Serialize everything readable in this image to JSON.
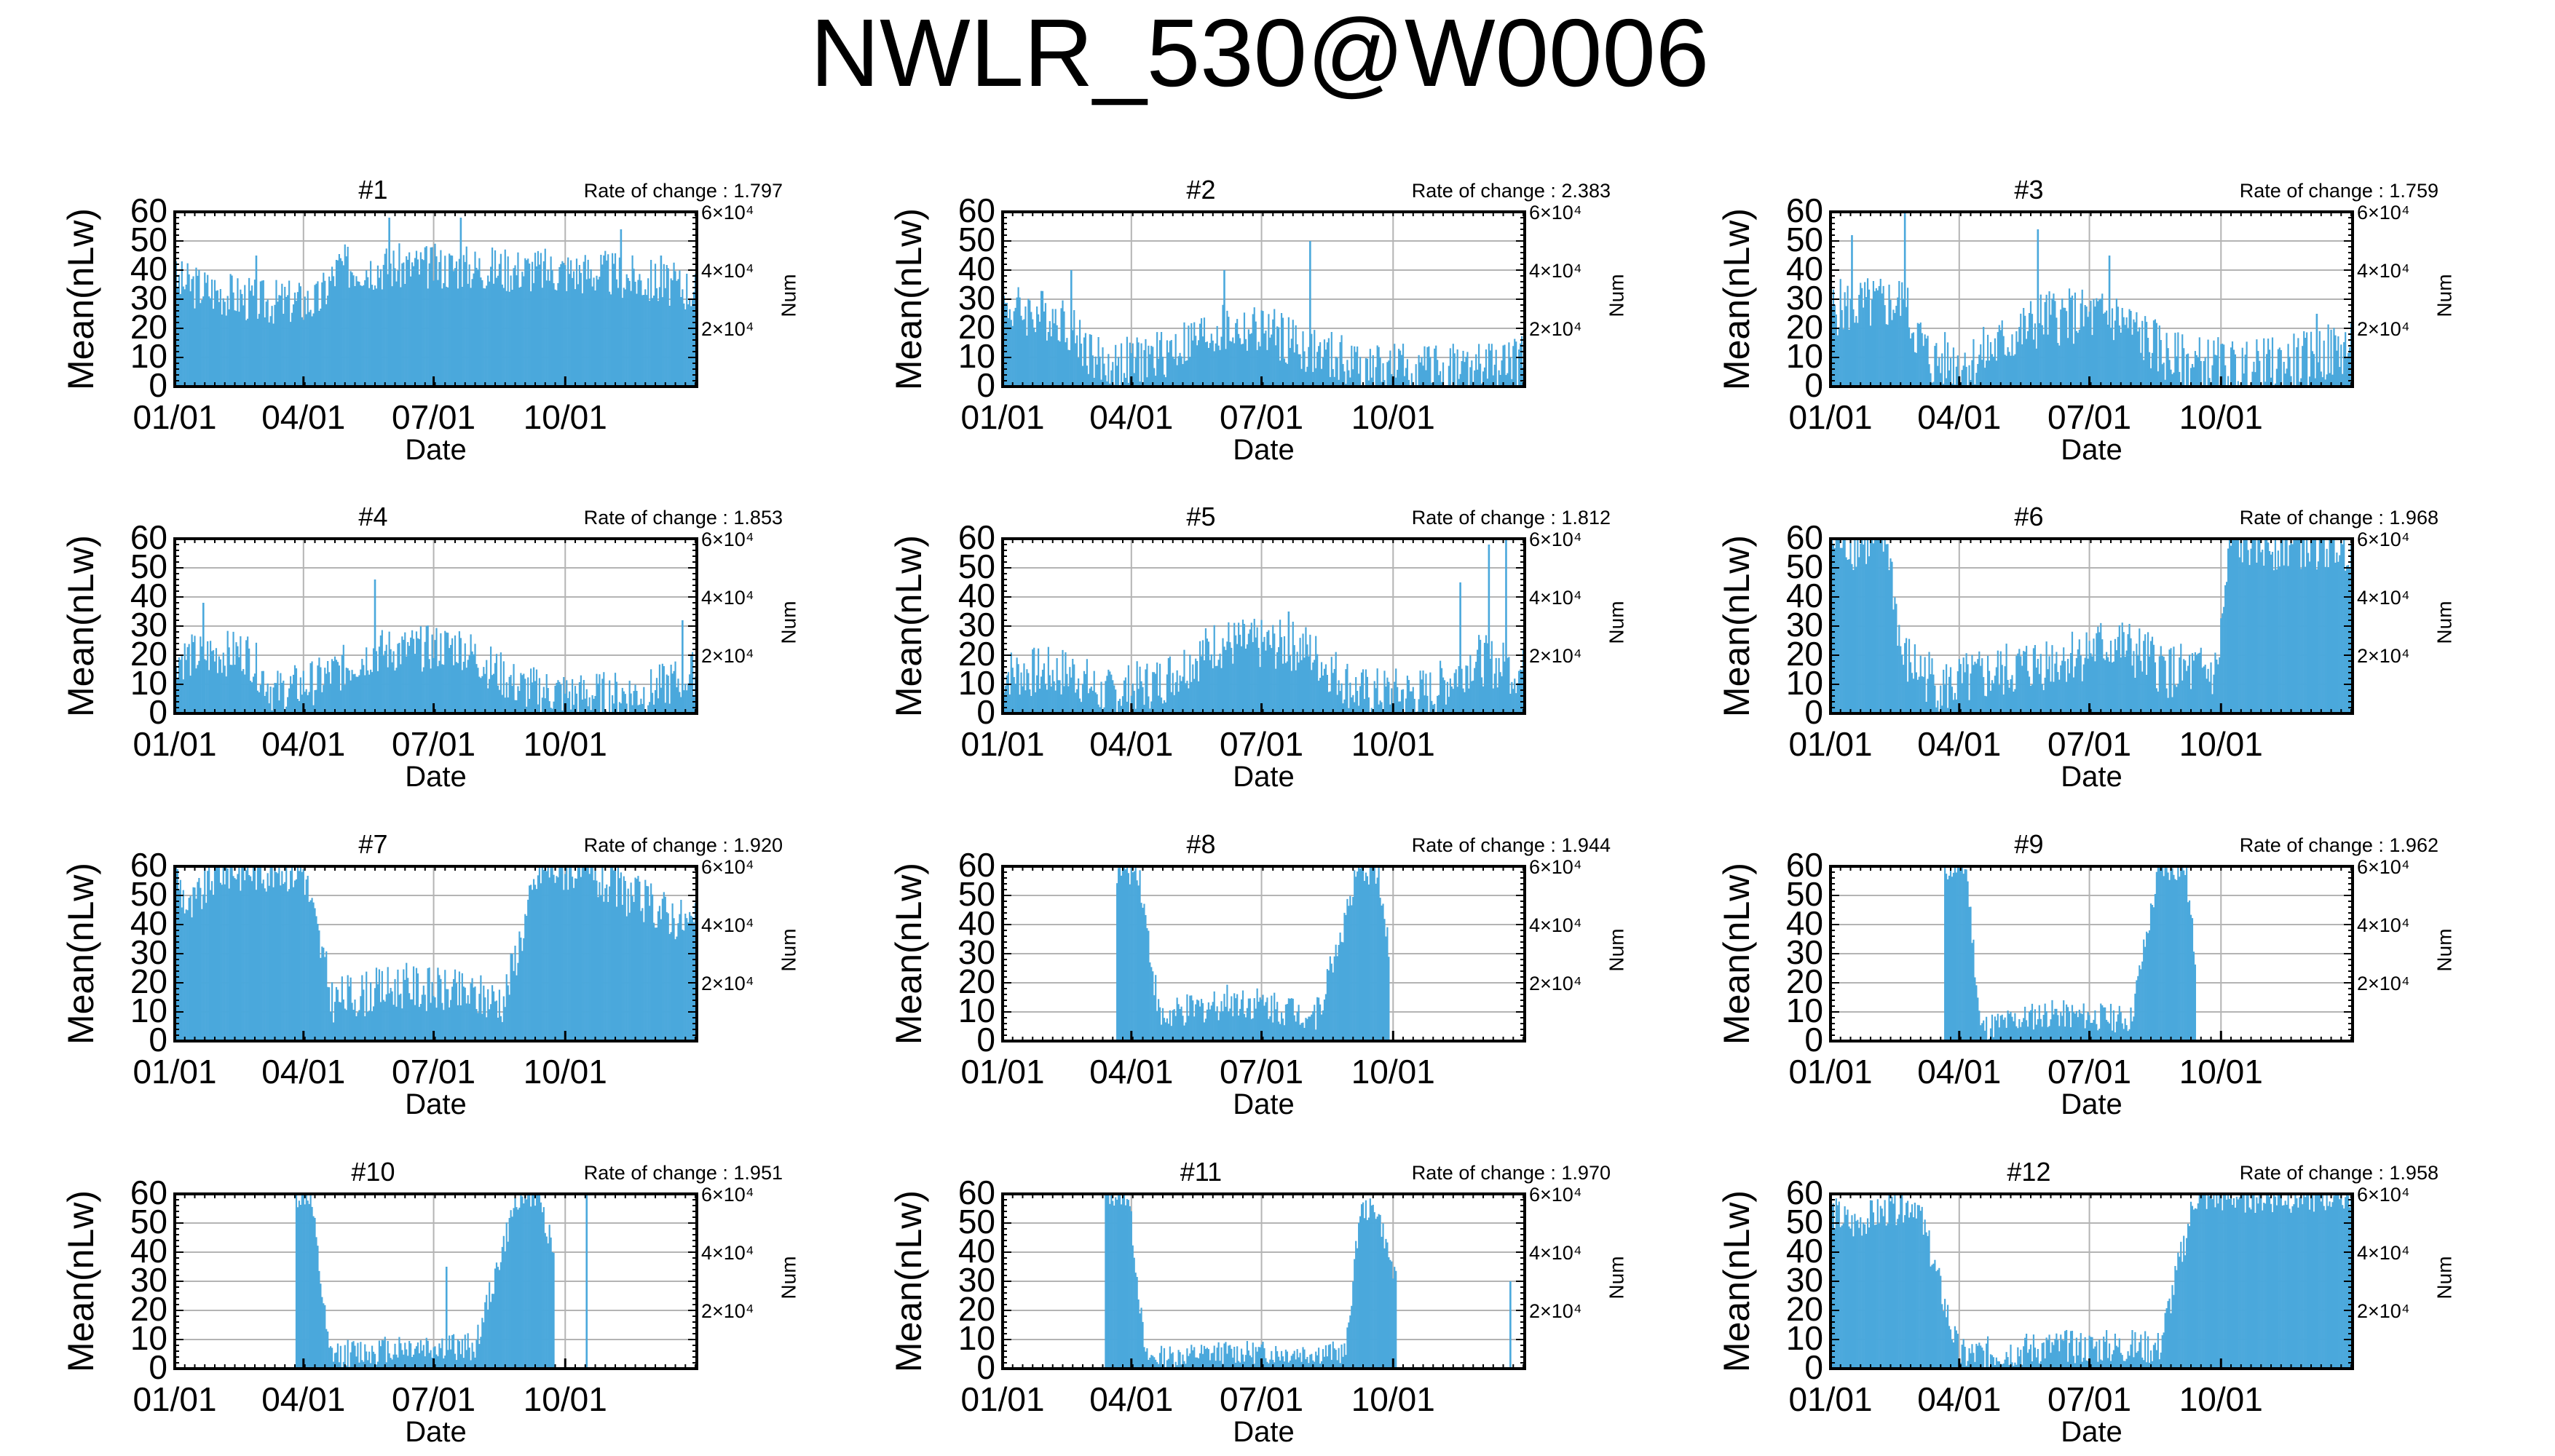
{
  "figure": {
    "title": "NWLR_530@W0006",
    "line_color": "#4aa8dc",
    "grid_color": "#b4b4b4"
  },
  "chart_data": [
    {
      "type": "bar",
      "title": "#1",
      "rate_label": "Rate of change : 1.797",
      "xlabel": "Date",
      "ylabel": "Mean(nLw)",
      "y2label": "Num",
      "x_ticks": [
        "01/01",
        "04/01",
        "07/01",
        "10/01"
      ],
      "y_ticks": [
        "0",
        "10",
        "20",
        "30",
        "40",
        "50",
        "60"
      ],
      "y2_ticks": [
        "2×10⁴",
        "4×10⁴",
        "6×10⁴"
      ],
      "ylim": [
        0,
        60
      ],
      "y2lim": [
        0,
        60000
      ],
      "grid": true,
      "x": "daily, Jan 1 – Dec 31",
      "profile": [
        [
          0,
          37
        ],
        [
          60,
          30
        ],
        [
          100,
          30
        ],
        [
          115,
          42
        ],
        [
          200,
          42
        ],
        [
          300,
          40
        ],
        [
          365,
          34
        ]
      ],
      "spread": 8,
      "spikes": [
        [
          57,
          45
        ],
        [
          150,
          58
        ],
        [
          200,
          58
        ],
        [
          312,
          54
        ],
        [
          340,
          45
        ]
      ]
    },
    {
      "type": "bar",
      "title": "#2",
      "rate_label": "Rate of change : 2.383",
      "xlabel": "Date",
      "ylabel": "Mean(nLw)",
      "y2label": "Num",
      "x_ticks": [
        "01/01",
        "04/01",
        "07/01",
        "10/01"
      ],
      "y_ticks": [
        "0",
        "10",
        "20",
        "30",
        "40",
        "50",
        "60"
      ],
      "y2_ticks": [
        "2×10⁴",
        "4×10⁴",
        "6×10⁴"
      ],
      "ylim": [
        0,
        60
      ],
      "y2lim": [
        0,
        60000
      ],
      "grid": true,
      "x": "daily, Jan 1 – Dec 31",
      "profile": [
        [
          0,
          28
        ],
        [
          40,
          25
        ],
        [
          70,
          8
        ],
        [
          100,
          10
        ],
        [
          150,
          20
        ],
        [
          185,
          20
        ],
        [
          220,
          12
        ],
        [
          260,
          7
        ],
        [
          330,
          7
        ],
        [
          365,
          10
        ]
      ],
      "spread": 9,
      "spikes": [
        [
          48,
          40
        ],
        [
          155,
          40
        ],
        [
          215,
          50
        ]
      ]
    },
    {
      "type": "bar",
      "title": "#3",
      "rate_label": "Rate of change : 1.759",
      "xlabel": "Date",
      "ylabel": "Mean(nLw)",
      "y2label": "Num",
      "x_ticks": [
        "01/01",
        "04/01",
        "07/01",
        "10/01"
      ],
      "y_ticks": [
        "0",
        "10",
        "20",
        "30",
        "40",
        "50",
        "60"
      ],
      "y2_ticks": [
        "2×10⁴",
        "4×10⁴",
        "6×10⁴"
      ],
      "ylim": [
        0,
        60
      ],
      "y2lim": [
        0,
        60000
      ],
      "grid": true,
      "x": "daily, Jan 1 – Dec 31",
      "profile": [
        [
          0,
          28
        ],
        [
          50,
          30
        ],
        [
          70,
          10
        ],
        [
          100,
          10
        ],
        [
          150,
          25
        ],
        [
          200,
          25
        ],
        [
          240,
          10
        ],
        [
          290,
          7
        ],
        [
          330,
          10
        ],
        [
          365,
          15
        ]
      ],
      "spread": 10,
      "spikes": [
        [
          15,
          52
        ],
        [
          52,
          60
        ],
        [
          145,
          54
        ],
        [
          195,
          45
        ],
        [
          340,
          25
        ]
      ]
    },
    {
      "type": "bar",
      "title": "#4",
      "rate_label": "Rate of change : 1.853",
      "xlabel": "Date",
      "ylabel": "Mean(nLw)",
      "y2label": "Num",
      "x_ticks": [
        "01/01",
        "04/01",
        "07/01",
        "10/01"
      ],
      "y_ticks": [
        "0",
        "10",
        "20",
        "30",
        "40",
        "50",
        "60"
      ],
      "y2_ticks": [
        "2×10⁴",
        "4×10⁴",
        "6×10⁴"
      ],
      "ylim": [
        0,
        60
      ],
      "y2lim": [
        0,
        60000
      ],
      "grid": true,
      "x": "daily, Jan 1 – Dec 31",
      "profile": [
        [
          0,
          20
        ],
        [
          50,
          22
        ],
        [
          70,
          8
        ],
        [
          100,
          12
        ],
        [
          140,
          22
        ],
        [
          200,
          24
        ],
        [
          240,
          10
        ],
        [
          280,
          7
        ],
        [
          330,
          8
        ],
        [
          365,
          15
        ]
      ],
      "spread": 8,
      "spikes": [
        [
          20,
          38
        ],
        [
          140,
          46
        ],
        [
          355,
          32
        ]
      ]
    },
    {
      "type": "bar",
      "title": "#5",
      "rate_label": "Rate of change : 1.812",
      "xlabel": "Date",
      "ylabel": "Mean(nLw)",
      "y2label": "Num",
      "x_ticks": [
        "01/01",
        "04/01",
        "07/01",
        "10/01"
      ],
      "y_ticks": [
        "0",
        "10",
        "20",
        "30",
        "40",
        "50",
        "60"
      ],
      "y2_ticks": [
        "2×10⁴",
        "4×10⁴",
        "6×10⁴"
      ],
      "ylim": [
        0,
        60
      ],
      "y2lim": [
        0,
        60000
      ],
      "grid": true,
      "x": "daily, Jan 1 – Dec 31",
      "profile": [
        [
          0,
          15
        ],
        [
          50,
          15
        ],
        [
          70,
          7
        ],
        [
          110,
          12
        ],
        [
          150,
          25
        ],
        [
          210,
          24
        ],
        [
          250,
          8
        ],
        [
          300,
          8
        ],
        [
          330,
          20
        ],
        [
          365,
          15
        ]
      ],
      "spread": 9,
      "spikes": [
        [
          200,
          35
        ],
        [
          320,
          45
        ],
        [
          340,
          58
        ],
        [
          352,
          60
        ]
      ]
    },
    {
      "type": "bar",
      "title": "#6",
      "rate_label": "Rate of change : 1.968",
      "xlabel": "Date",
      "ylabel": "Mean(nLw)",
      "y2label": "Num",
      "x_ticks": [
        "01/01",
        "04/01",
        "07/01",
        "10/01"
      ],
      "y_ticks": [
        "0",
        "10",
        "20",
        "30",
        "40",
        "50",
        "60"
      ],
      "y2_ticks": [
        "2×10⁴",
        "4×10⁴",
        "6×10⁴"
      ],
      "ylim": [
        0,
        60
      ],
      "y2lim": [
        0,
        60000
      ],
      "grid": true,
      "x": "daily, Jan 1 – Dec 31",
      "profile": [
        [
          0,
          60
        ],
        [
          40,
          60
        ],
        [
          50,
          20
        ],
        [
          80,
          10
        ],
        [
          120,
          15
        ],
        [
          200,
          25
        ],
        [
          240,
          15
        ],
        [
          270,
          15
        ],
        [
          280,
          60
        ],
        [
          365,
          60
        ]
      ],
      "spread": 10,
      "spikes": []
    },
    {
      "type": "bar",
      "title": "#7",
      "rate_label": "Rate of change : 1.920",
      "xlabel": "Date",
      "ylabel": "Mean(nLw)",
      "y2label": "Num",
      "x_ticks": [
        "01/01",
        "04/01",
        "07/01",
        "10/01"
      ],
      "y_ticks": [
        "0",
        "10",
        "20",
        "30",
        "40",
        "50",
        "60"
      ],
      "y2_ticks": [
        "2×10⁴",
        "4×10⁴",
        "6×10⁴"
      ],
      "ylim": [
        0,
        60
      ],
      "y2lim": [
        0,
        60000
      ],
      "grid": true,
      "x": "daily, Jan 1 – Dec 31",
      "profile": [
        [
          0,
          60
        ],
        [
          10,
          45
        ],
        [
          30,
          60
        ],
        [
          90,
          60
        ],
        [
          110,
          15
        ],
        [
          160,
          20
        ],
        [
          230,
          15
        ],
        [
          255,
          60
        ],
        [
          280,
          60
        ],
        [
          365,
          40
        ]
      ],
      "spread": 8,
      "spikes": []
    },
    {
      "type": "bar",
      "title": "#8",
      "rate_label": "Rate of change : 1.944",
      "xlabel": "Date",
      "ylabel": "Mean(nLw)",
      "y2label": "Num",
      "x_ticks": [
        "01/01",
        "04/01",
        "07/01",
        "10/01"
      ],
      "y_ticks": [
        "0",
        "10",
        "20",
        "30",
        "40",
        "50",
        "60"
      ],
      "y2_ticks": [
        "2×10⁴",
        "4×10⁴",
        "6×10⁴"
      ],
      "ylim": [
        0,
        60
      ],
      "y2lim": [
        0,
        60000
      ],
      "grid": true,
      "x": "daily, Jan 1 – Dec 31",
      "profile": [
        [
          80,
          60
        ],
        [
          95,
          60
        ],
        [
          110,
          8
        ],
        [
          160,
          15
        ],
        [
          220,
          10
        ],
        [
          250,
          60
        ],
        [
          262,
          60
        ],
        [
          270,
          30
        ]
      ],
      "spread": 6,
      "spikes": []
    },
    {
      "type": "bar",
      "title": "#9",
      "rate_label": "Rate of change : 1.962",
      "xlabel": "Date",
      "ylabel": "Mean(nLw)",
      "y2label": "Num",
      "x_ticks": [
        "01/01",
        "04/01",
        "07/01",
        "10/01"
      ],
      "y_ticks": [
        "0",
        "10",
        "20",
        "30",
        "40",
        "50",
        "60"
      ],
      "y2_ticks": [
        "2×10⁴",
        "4×10⁴",
        "6×10⁴"
      ],
      "ylim": [
        0,
        60
      ],
      "y2lim": [
        0,
        60000
      ],
      "grid": true,
      "x": "daily, Jan 1 – Dec 31",
      "profile": [
        [
          80,
          60
        ],
        [
          95,
          60
        ],
        [
          105,
          5
        ],
        [
          150,
          10
        ],
        [
          210,
          8
        ],
        [
          230,
          60
        ],
        [
          248,
          60
        ],
        [
          255,
          30
        ]
      ],
      "spread": 5,
      "spikes": []
    },
    {
      "type": "bar",
      "title": "#10",
      "rate_label": "Rate of change : 1.951",
      "xlabel": "Date",
      "ylabel": "Mean(nLw)",
      "y2label": "Num",
      "x_ticks": [
        "01/01",
        "04/01",
        "07/01",
        "10/01"
      ],
      "y_ticks": [
        "0",
        "10",
        "20",
        "30",
        "40",
        "50",
        "60"
      ],
      "y2_ticks": [
        "2×10⁴",
        "4×10⁴",
        "6×10⁴"
      ],
      "ylim": [
        0,
        60
      ],
      "y2lim": [
        0,
        60000
      ],
      "grid": true,
      "x": "daily, Jan 1 – Dec 31",
      "profile": [
        [
          85,
          60
        ],
        [
          95,
          60
        ],
        [
          108,
          5
        ],
        [
          160,
          8
        ],
        [
          210,
          8
        ],
        [
          240,
          60
        ],
        [
          255,
          60
        ],
        [
          265,
          40
        ]
      ],
      "spread": 5,
      "spikes": [
        [
          190,
          35
        ],
        [
          288,
          60
        ]
      ]
    },
    {
      "type": "bar",
      "title": "#11",
      "rate_label": "Rate of change : 1.970",
      "xlabel": "Date",
      "ylabel": "Mean(nLw)",
      "y2label": "Num",
      "x_ticks": [
        "01/01",
        "04/01",
        "07/01",
        "10/01"
      ],
      "y_ticks": [
        "0",
        "10",
        "20",
        "30",
        "40",
        "50",
        "60"
      ],
      "y2_ticks": [
        "2×10⁴",
        "4×10⁴",
        "6×10⁴"
      ],
      "ylim": [
        0,
        60
      ],
      "y2lim": [
        0,
        60000
      ],
      "grid": true,
      "x": "daily, Jan 1 – Dec 31",
      "profile": [
        [
          72,
          60
        ],
        [
          88,
          60
        ],
        [
          100,
          4
        ],
        [
          150,
          6
        ],
        [
          240,
          6
        ],
        [
          250,
          55
        ],
        [
          262,
          55
        ],
        [
          275,
          30
        ]
      ],
      "spread": 4,
      "spikes": [
        [
          0,
          58
        ],
        [
          355,
          30
        ]
      ]
    },
    {
      "type": "bar",
      "title": "#12",
      "rate_label": "Rate of change : 1.958",
      "xlabel": "Date",
      "ylabel": "Mean(nLw)",
      "y2label": "Num",
      "x_ticks": [
        "01/01",
        "04/01",
        "07/01",
        "10/01"
      ],
      "y_ticks": [
        "0",
        "10",
        "20",
        "30",
        "40",
        "50",
        "60"
      ],
      "y2_ticks": [
        "2×10⁴",
        "4×10⁴",
        "6×10⁴"
      ],
      "ylim": [
        0,
        60
      ],
      "y2lim": [
        0,
        60000
      ],
      "grid": true,
      "x": "daily, Jan 1 – Dec 31",
      "profile": [
        [
          0,
          55
        ],
        [
          15,
          50
        ],
        [
          40,
          55
        ],
        [
          60,
          58
        ],
        [
          90,
          5
        ],
        [
          150,
          8
        ],
        [
          230,
          8
        ],
        [
          255,
          60
        ],
        [
          365,
          60
        ]
      ],
      "spread": 6,
      "spikes": []
    }
  ]
}
